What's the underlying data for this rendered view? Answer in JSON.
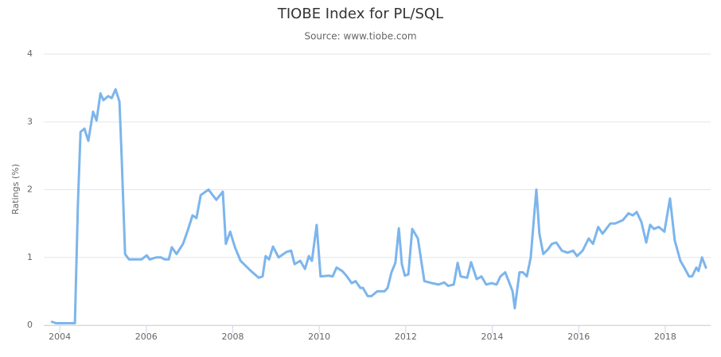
{
  "chart_data": {
    "type": "line",
    "title": "TIOBE Index for PL/SQL",
    "subtitle": "Source: www.tiobe.com",
    "y_label": "Ratings (%)",
    "color": "#7cb5ec",
    "grid": true,
    "xlim": [
      2003.63,
      2019.05
    ],
    "xticks": [
      2004,
      2006,
      2008,
      2010,
      2012,
      2014,
      2016,
      2018
    ],
    "ylim": [
      0,
      4
    ],
    "yticks": [
      0,
      1,
      2,
      3,
      4
    ],
    "x": [
      2003.82,
      2003.91,
      2004.35,
      2004.42,
      2004.48,
      2004.57,
      2004.66,
      2004.77,
      2004.85,
      2004.94,
      2005.01,
      2005.12,
      2005.2,
      2005.29,
      2005.38,
      2005.43,
      2005.51,
      2005.6,
      2005.89,
      2006.01,
      2006.08,
      2006.23,
      2006.34,
      2006.43,
      2006.52,
      2006.59,
      2006.7,
      2006.85,
      2006.96,
      2007.07,
      2007.16,
      2007.26,
      2007.44,
      2007.62,
      2007.77,
      2007.84,
      2007.94,
      2008.05,
      2008.18,
      2008.42,
      2008.6,
      2008.69,
      2008.76,
      2008.84,
      2008.93,
      2009.06,
      2009.24,
      2009.35,
      2009.43,
      2009.56,
      2009.67,
      2009.76,
      2009.83,
      2009.94,
      2010.03,
      2010.22,
      2010.31,
      2010.4,
      2010.53,
      2010.64,
      2010.75,
      2010.84,
      2010.95,
      2011.01,
      2011.12,
      2011.21,
      2011.34,
      2011.51,
      2011.58,
      2011.67,
      2011.76,
      2011.84,
      2011.91,
      2011.98,
      2012.06,
      2012.15,
      2012.28,
      2012.43,
      2012.61,
      2012.76,
      2012.89,
      2012.98,
      2013.11,
      2013.2,
      2013.27,
      2013.42,
      2013.51,
      2013.64,
      2013.75,
      2013.86,
      2013.99,
      2014.1,
      2014.19,
      2014.3,
      2014.41,
      2014.47,
      2014.52,
      2014.63,
      2014.71,
      2014.8,
      2014.89,
      2014.96,
      2015.02,
      2015.09,
      2015.18,
      2015.29,
      2015.38,
      2015.48,
      2015.61,
      2015.74,
      2015.87,
      2015.96,
      2016.09,
      2016.23,
      2016.33,
      2016.45,
      2016.55,
      2016.73,
      2016.84,
      2017.02,
      2017.15,
      2017.25,
      2017.34,
      2017.45,
      2017.56,
      2017.65,
      2017.74,
      2017.85,
      2017.98,
      2018.11,
      2018.22,
      2018.35,
      2018.44,
      2018.55,
      2018.62,
      2018.72,
      2018.77,
      2018.85,
      2018.94
    ],
    "values": [
      0.05,
      0.03,
      0.03,
      1.8,
      2.85,
      2.9,
      2.72,
      3.15,
      3.02,
      3.42,
      3.32,
      3.38,
      3.35,
      3.48,
      3.3,
      2.5,
      1.05,
      0.97,
      0.97,
      1.03,
      0.97,
      1.0,
      1.0,
      0.97,
      0.97,
      1.15,
      1.05,
      1.2,
      1.4,
      1.62,
      1.58,
      1.92,
      2.0,
      1.85,
      1.97,
      1.2,
      1.38,
      1.15,
      0.95,
      0.8,
      0.7,
      0.72,
      1.02,
      0.97,
      1.16,
      1.0,
      1.08,
      1.1,
      0.9,
      0.95,
      0.83,
      1.02,
      0.95,
      1.48,
      0.72,
      0.73,
      0.72,
      0.85,
      0.8,
      0.72,
      0.62,
      0.65,
      0.55,
      0.55,
      0.43,
      0.43,
      0.5,
      0.5,
      0.55,
      0.78,
      0.92,
      1.43,
      0.9,
      0.73,
      0.75,
      1.42,
      1.28,
      0.65,
      0.62,
      0.6,
      0.63,
      0.58,
      0.6,
      0.92,
      0.72,
      0.7,
      0.93,
      0.68,
      0.72,
      0.6,
      0.62,
      0.6,
      0.72,
      0.78,
      0.6,
      0.5,
      0.25,
      0.78,
      0.78,
      0.72,
      1.0,
      1.55,
      2.0,
      1.35,
      1.05,
      1.12,
      1.2,
      1.22,
      1.1,
      1.07,
      1.1,
      1.02,
      1.1,
      1.28,
      1.2,
      1.45,
      1.35,
      1.5,
      1.5,
      1.55,
      1.65,
      1.62,
      1.67,
      1.52,
      1.22,
      1.48,
      1.42,
      1.45,
      1.38,
      1.87,
      1.25,
      0.95,
      0.85,
      0.72,
      0.72,
      0.85,
      0.8,
      1.0,
      0.85
    ]
  }
}
